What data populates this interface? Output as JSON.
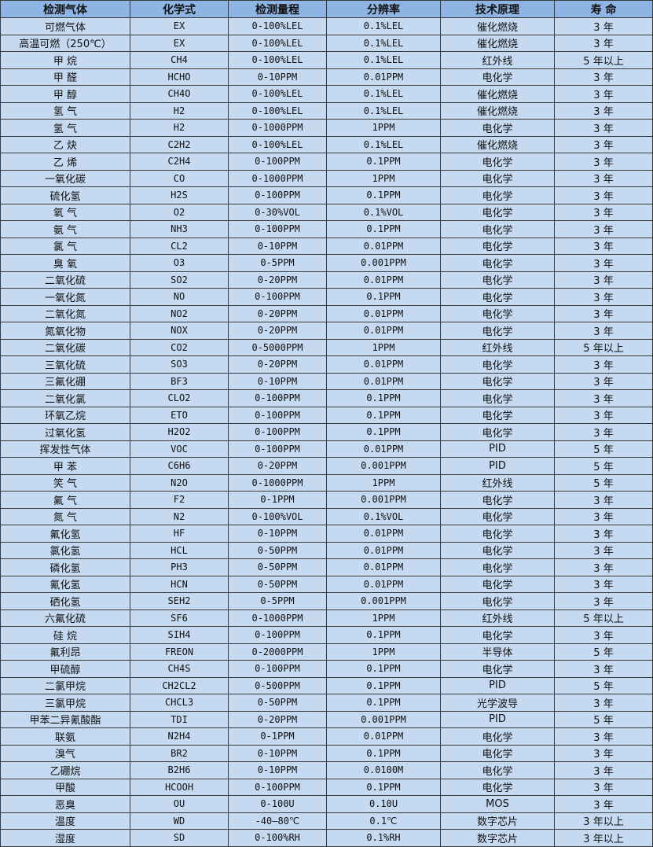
{
  "header": [
    "检测气体",
    "化学式",
    "检测量程",
    "分辨率",
    "技术原理",
    "寿 命"
  ],
  "rows": [
    [
      "可燃气体",
      "EX",
      "0-100%LEL",
      "0.1%LEL",
      "催化燃烧",
      "3 年"
    ],
    [
      "高温可燃（250℃）",
      "EX",
      "0-100%LEL",
      "0.1%LEL",
      "催化燃烧",
      "3 年"
    ],
    [
      "甲 烷",
      "CH4",
      "0-100%LEL",
      "0.1%LEL",
      "红外线",
      "5 年以上"
    ],
    [
      "甲 醛",
      "HCHO",
      "0-10PPM",
      "0.01PPM",
      "电化学",
      "3 年"
    ],
    [
      "甲 醇",
      "CH4O",
      "0-100%LEL",
      "0.1%LEL",
      "催化燃烧",
      "3 年"
    ],
    [
      "氢 气",
      "H2",
      "0-100%LEL",
      "0.1%LEL",
      "催化燃烧",
      "3 年"
    ],
    [
      "氢 气",
      "H2",
      "0-1000PPM",
      "1PPM",
      "电化学",
      "3 年"
    ],
    [
      "乙 炔",
      "C2H2",
      "0-100%LEL",
      "0.1%LEL",
      "催化燃烧",
      "3 年"
    ],
    [
      "乙 烯",
      "C2H4",
      "0-100PPM",
      "0.1PPM",
      "电化学",
      "3 年"
    ],
    [
      "一氧化碳",
      "CO",
      "0-1000PPM",
      "1PPM",
      "电化学",
      "3 年"
    ],
    [
      "硫化氢",
      "H2S",
      "0-100PPM",
      "0.1PPM",
      "电化学",
      "3 年"
    ],
    [
      "氧 气",
      "O2",
      "0-30%VOL",
      "0.1%VOL",
      "电化学",
      "3 年"
    ],
    [
      "氨 气",
      "NH3",
      "0-100PPM",
      "0.1PPM",
      "电化学",
      "3 年"
    ],
    [
      "氯 气",
      "CL2",
      "0-10PPM",
      "0.01PPM",
      "电化学",
      "3 年"
    ],
    [
      "臭 氧",
      "O3",
      "0-5PPM",
      "0.001PPM",
      "电化学",
      "3 年"
    ],
    [
      "二氧化硫",
      "SO2",
      "0-20PPM",
      "0.01PPM",
      "电化学",
      "3 年"
    ],
    [
      "一氧化氮",
      "NO",
      "0-100PPM",
      "0.1PPM",
      "电化学",
      "3 年"
    ],
    [
      "二氧化氮",
      "NO2",
      "0-20PPM",
      "0.01PPM",
      "电化学",
      "3 年"
    ],
    [
      "氮氧化物",
      "NOX",
      "0-20PPM",
      "0.01PPM",
      "电化学",
      "3 年"
    ],
    [
      "二氧化碳",
      "CO2",
      "0-5000PPM",
      "1PPM",
      "红外线",
      "5 年以上"
    ],
    [
      "三氧化硫",
      "SO3",
      "0-20PPM",
      "0.01PPM",
      "电化学",
      "3 年"
    ],
    [
      "三氟化硼",
      "BF3",
      "0-10PPM",
      "0.01PPM",
      "电化学",
      "3 年"
    ],
    [
      "二氧化氯",
      "CLO2",
      "0-100PPM",
      "0.1PPM",
      "电化学",
      "3 年"
    ],
    [
      "环氧乙烷",
      "ETO",
      "0-100PPM",
      "0.1PPM",
      "电化学",
      "3 年"
    ],
    [
      "过氧化氢",
      "H2O2",
      "0-100PPM",
      "0.1PPM",
      "电化学",
      "3 年"
    ],
    [
      "挥发性气体",
      "VOC",
      "0-100PPM",
      "0.01PPM",
      "PID",
      "5 年"
    ],
    [
      "甲 苯",
      "C6H6",
      "0-20PPM",
      "0.001PPM",
      "PID",
      "5 年"
    ],
    [
      "笑 气",
      "N2O",
      "0-1000PPM",
      "1PPM",
      "红外线",
      "5 年"
    ],
    [
      "氟 气",
      "F2",
      "0-1PPM",
      "0.001PPM",
      "电化学",
      "3 年"
    ],
    [
      "氮 气",
      "N2",
      "0-100%VOL",
      "0.1%VOL",
      "电化学",
      "3 年"
    ],
    [
      "氟化氢",
      "HF",
      "0-10PPM",
      "0.01PPM",
      "电化学",
      "3 年"
    ],
    [
      "氯化氢",
      "HCL",
      "0-50PPM",
      "0.01PPM",
      "电化学",
      "3 年"
    ],
    [
      "磷化氢",
      "PH3",
      "0-50PPM",
      "0.01PPM",
      "电化学",
      "3 年"
    ],
    [
      "氰化氢",
      "HCN",
      "0-50PPM",
      "0.01PPM",
      "电化学",
      "3 年"
    ],
    [
      "硒化氢",
      "SEH2",
      "0-5PPM",
      "0.001PPM",
      "电化学",
      "3 年"
    ],
    [
      "六氟化硫",
      "SF6",
      "0-1000PPM",
      "1PPM",
      "红外线",
      "5 年以上"
    ],
    [
      "硅 烷",
      "SIH4",
      "0-100PPM",
      "0.1PPM",
      "电化学",
      "3 年"
    ],
    [
      "氟利昂",
      "FREON",
      "0-2000PPM",
      "1PPM",
      "半导体",
      "5 年"
    ],
    [
      "甲硫醇",
      "CH4S",
      "0-100PPM",
      "0.1PPM",
      "电化学",
      "3 年"
    ],
    [
      "二氯甲烷",
      "CH2CL2",
      "0-500PPM",
      "0.1PPM",
      "PID",
      "5 年"
    ],
    [
      "三氯甲烷",
      "CHCL3",
      "0-50PPM",
      "0.1PPM",
      "光学波导",
      "3 年"
    ],
    [
      "甲苯二异氰酸酯",
      "TDI",
      "0-20PPM",
      "0.001PPM",
      "PID",
      "5 年"
    ],
    [
      "联氨",
      "N2H4",
      "0-1PPM",
      "0.01PPM",
      "电化学",
      "3 年"
    ],
    [
      "溴气",
      "BR2",
      "0-10PPM",
      "0.1PPM",
      "电化学",
      "3 年"
    ],
    [
      "乙硼烷",
      "B2H6",
      "0-10PPM",
      "0.0100M",
      "电化学",
      "3 年"
    ],
    [
      "甲酸",
      "HCOOH",
      "0-100PPM",
      "0.1PPM",
      "电化学",
      "3 年"
    ],
    [
      "恶臭",
      "OU",
      "0-100U",
      "0.10U",
      "MOS",
      "3 年"
    ],
    [
      "温度",
      "WD",
      "-40—80℃",
      "0.1℃",
      "数字芯片",
      "3 年以上"
    ],
    [
      "湿度",
      "SD",
      "0-100%RH",
      "0.1%RH",
      "数字芯片",
      "3 年以上"
    ]
  ]
}
